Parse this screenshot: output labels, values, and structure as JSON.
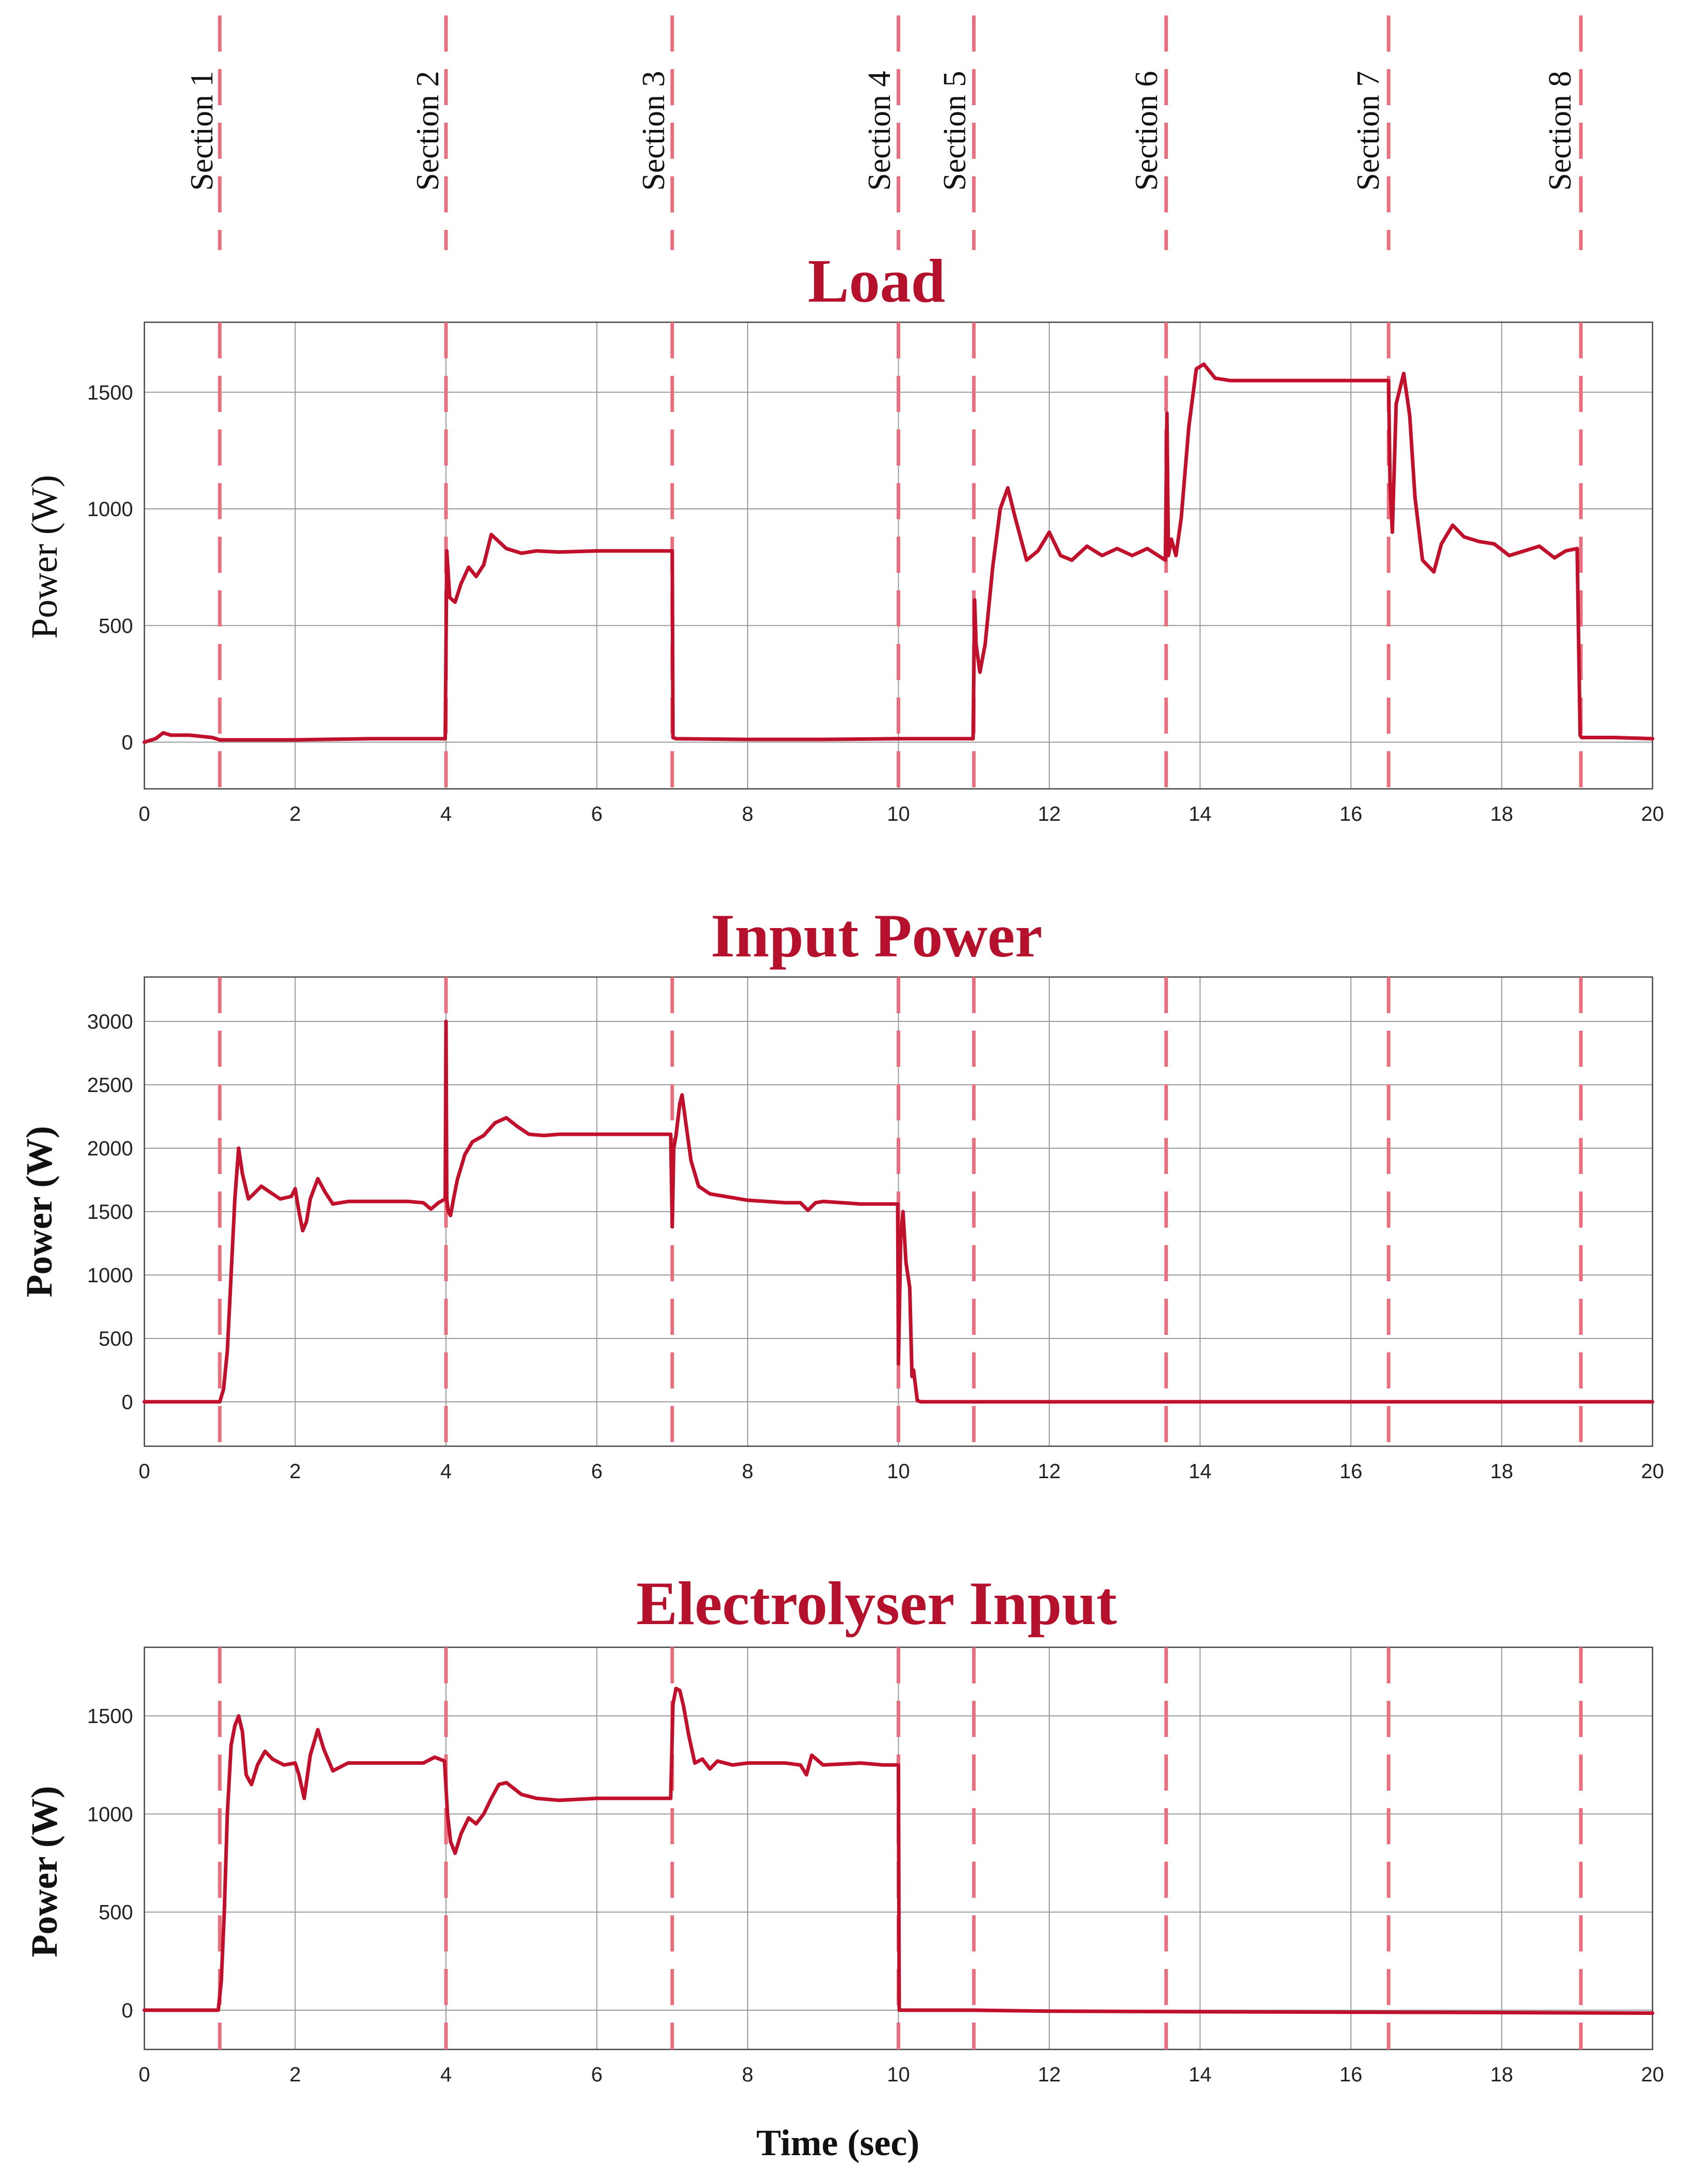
{
  "colors": {
    "series": "#c0102c",
    "title": "#b5102c",
    "section_line": "#e8707e"
  },
  "sections": [
    {
      "label": "Section 1",
      "t": 1
    },
    {
      "label": "Section 2",
      "t": 4
    },
    {
      "label": "Section 3",
      "t": 7
    },
    {
      "label": "Section 4",
      "t": 10
    },
    {
      "label": "Section 5",
      "t": 11
    },
    {
      "label": "Section 6",
      "t": 13.55
    },
    {
      "label": "Section 7",
      "t": 16.5
    },
    {
      "label": "Section 8",
      "t": 19.05
    }
  ],
  "x_axis_label": "Time (sec)",
  "chart_data": [
    {
      "type": "line",
      "title": "Load",
      "ylabel": "Power (W)",
      "xlim": [
        0,
        20
      ],
      "ylim": [
        -200,
        1800
      ],
      "xticks": [
        0,
        2,
        4,
        6,
        8,
        10,
        12,
        14,
        16,
        18,
        20
      ],
      "yticks": [
        0,
        500,
        1000,
        1500
      ],
      "grid": true,
      "series": [
        {
          "x": [
            0,
            0.15,
            0.25,
            0.35,
            0.6,
            0.9,
            1.0,
            2.0,
            3.0,
            3.99,
            4.01,
            4.05,
            4.12,
            4.2,
            4.3,
            4.4,
            4.5,
            4.6,
            4.8,
            5.0,
            5.2,
            5.5,
            6.0,
            6.5,
            7.0,
            7.01,
            7.05,
            8,
            9,
            10,
            10.99,
            11.01,
            11.03,
            11.08,
            11.15,
            11.25,
            11.35,
            11.45,
            11.55,
            11.7,
            11.85,
            12.0,
            12.15,
            12.3,
            12.5,
            12.7,
            12.9,
            13.1,
            13.3,
            13.54,
            13.56,
            13.58,
            13.62,
            13.68,
            13.75,
            13.85,
            13.95,
            14.05,
            14.2,
            14.4,
            15,
            15.5,
            16.0,
            16.45,
            16.5,
            16.52,
            16.55,
            16.6,
            16.7,
            16.78,
            16.85,
            16.95,
            17.1,
            17.2,
            17.35,
            17.5,
            17.7,
            17.9,
            18.1,
            18.3,
            18.5,
            18.7,
            18.85,
            19.0,
            19.04,
            19.06,
            19.1,
            19.5,
            20
          ],
          "y": [
            0,
            15,
            40,
            30,
            30,
            20,
            10,
            10,
            15,
            15,
            820,
            620,
            600,
            680,
            750,
            710,
            760,
            890,
            830,
            810,
            820,
            815,
            820,
            820,
            820,
            20,
            15,
            12,
            12,
            15,
            15,
            610,
            420,
            300,
            420,
            750,
            1000,
            1090,
            960,
            780,
            820,
            900,
            800,
            780,
            840,
            800,
            830,
            800,
            830,
            780,
            1410,
            800,
            870,
            800,
            960,
            1350,
            1600,
            1620,
            1560,
            1550,
            1550,
            1550,
            1550,
            1550,
            1550,
            1100,
            900,
            1450,
            1580,
            1400,
            1050,
            780,
            730,
            850,
            930,
            880,
            860,
            850,
            800,
            820,
            840,
            790,
            820,
            830,
            30,
            20,
            20,
            20,
            15
          ]
        }
      ]
    },
    {
      "type": "line",
      "title": "Input Power",
      "ylabel": "Power (W)",
      "xlim": [
        0,
        20
      ],
      "ylim": [
        -350,
        3350
      ],
      "xticks": [
        0,
        2,
        4,
        6,
        8,
        10,
        12,
        14,
        16,
        18,
        20
      ],
      "yticks": [
        0,
        500,
        1000,
        1500,
        2000,
        2500,
        3000
      ],
      "grid": true,
      "series": [
        {
          "x": [
            0,
            0.95,
            1.0,
            1.05,
            1.1,
            1.15,
            1.2,
            1.25,
            1.3,
            1.38,
            1.45,
            1.55,
            1.65,
            1.8,
            1.95,
            2.0,
            2.05,
            2.1,
            2.15,
            2.2,
            2.3,
            2.4,
            2.5,
            2.7,
            3.0,
            3.5,
            3.7,
            3.8,
            3.9,
            3.99,
            4.0,
            4.01,
            4.03,
            4.06,
            4.1,
            4.15,
            4.25,
            4.35,
            4.5,
            4.65,
            4.8,
            4.95,
            5.1,
            5.3,
            5.5,
            6.0,
            6.5,
            6.98,
            7.0,
            7.02,
            7.05,
            7.1,
            7.13,
            7.18,
            7.25,
            7.35,
            7.5,
            7.7,
            8.0,
            8.5,
            8.7,
            8.8,
            8.9,
            9.0,
            9.5,
            9.95,
            9.99,
            10.0,
            10.03,
            10.06,
            10.1,
            10.15,
            10.18,
            10.2,
            10.25,
            10.3,
            11,
            12,
            14,
            16,
            18,
            20
          ],
          "y": [
            0,
            0,
            0,
            100,
            400,
            1000,
            1600,
            2000,
            1800,
            1600,
            1640,
            1700,
            1660,
            1600,
            1620,
            1680,
            1500,
            1350,
            1420,
            1600,
            1760,
            1650,
            1560,
            1580,
            1580,
            1580,
            1570,
            1520,
            1570,
            1600,
            3000,
            1600,
            1500,
            1470,
            1600,
            1750,
            1950,
            2050,
            2100,
            2200,
            2240,
            2170,
            2110,
            2100,
            2110,
            2110,
            2110,
            2110,
            1380,
            2000,
            2100,
            2350,
            2420,
            2200,
            1900,
            1700,
            1640,
            1620,
            1590,
            1570,
            1570,
            1510,
            1570,
            1580,
            1560,
            1560,
            1560,
            300,
            1300,
            1500,
            1100,
            900,
            200,
            250,
            10,
            0,
            0,
            0,
            0,
            0,
            0,
            0
          ]
        }
      ]
    },
    {
      "type": "line",
      "title": "Electrolyser Input",
      "ylabel": "Power (W)",
      "xlabel": "Time (sec)",
      "xlim": [
        0,
        20
      ],
      "ylim": [
        -200,
        1850
      ],
      "xticks": [
        0,
        2,
        4,
        6,
        8,
        10,
        12,
        14,
        16,
        18,
        20
      ],
      "yticks": [
        0,
        500,
        1000,
        1500
      ],
      "grid": true,
      "series": [
        {
          "x": [
            0,
            0.98,
            1.02,
            1.06,
            1.1,
            1.15,
            1.2,
            1.25,
            1.3,
            1.35,
            1.42,
            1.5,
            1.6,
            1.7,
            1.85,
            2.0,
            2.05,
            2.12,
            2.2,
            2.3,
            2.38,
            2.5,
            2.7,
            3.0,
            3.5,
            3.7,
            3.85,
            3.98,
            4.02,
            4.06,
            4.12,
            4.2,
            4.3,
            4.4,
            4.5,
            4.6,
            4.7,
            4.8,
            5.0,
            5.2,
            5.5,
            6.0,
            6.5,
            6.98,
            7.01,
            7.05,
            7.1,
            7.15,
            7.22,
            7.3,
            7.4,
            7.5,
            7.6,
            7.8,
            8.0,
            8.5,
            8.7,
            8.78,
            8.85,
            9.0,
            9.5,
            9.8,
            9.99,
            10.0,
            10.01,
            11,
            12,
            14,
            16,
            18,
            20
          ],
          "y": [
            0,
            0,
            150,
            500,
            1000,
            1350,
            1450,
            1500,
            1420,
            1200,
            1150,
            1250,
            1320,
            1280,
            1250,
            1260,
            1200,
            1080,
            1300,
            1430,
            1330,
            1220,
            1260,
            1260,
            1260,
            1260,
            1290,
            1270,
            1000,
            860,
            800,
            900,
            980,
            950,
            1000,
            1080,
            1150,
            1160,
            1100,
            1080,
            1070,
            1080,
            1080,
            1080,
            1560,
            1640,
            1630,
            1550,
            1400,
            1260,
            1280,
            1230,
            1270,
            1250,
            1260,
            1260,
            1250,
            1200,
            1300,
            1250,
            1260,
            1250,
            1250,
            1250,
            0,
            0,
            -5,
            -8,
            -10,
            -12,
            -15
          ]
        }
      ]
    }
  ]
}
